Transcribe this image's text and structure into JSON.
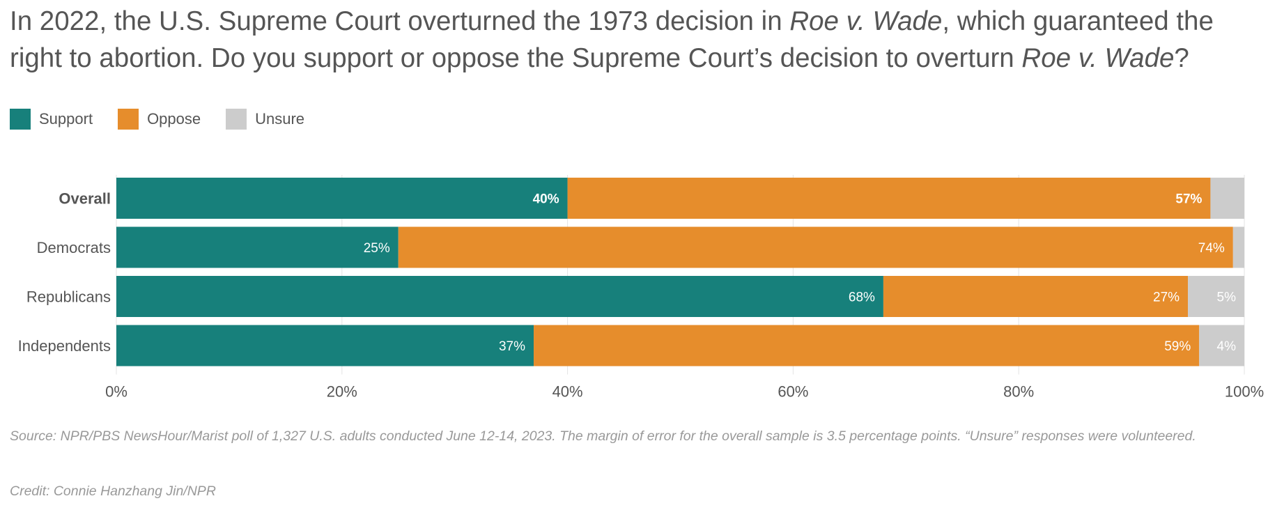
{
  "title": {
    "part1": "In 2022, the U.S. Supreme Court overturned the 1973 decision in ",
    "case1": "Roe v. Wade",
    "part2": ", which guaranteed the right to abortion. Do you support or oppose the Supreme Court’s decision to overturn ",
    "case2": "Roe v. Wade",
    "part3": "?"
  },
  "source": "Source: NPR/PBS NewsHour/Marist poll of 1,327 U.S. adults conducted June 12-14, 2023. The margin of error for the overall sample is 3.5 percentage points. “Unsure” responses were volunteered.",
  "credit": "Credit: Connie Hanzhang Jin/NPR",
  "colors": {
    "support": "#17807b",
    "oppose": "#e68d2c",
    "unsure": "#cccccc",
    "text": "#555555",
    "grid": "#e3e3e3"
  },
  "chart_data": {
    "type": "bar",
    "orientation": "horizontal",
    "stacked": true,
    "categories": [
      "Overall",
      "Democrats",
      "Republicans",
      "Independents"
    ],
    "bold_categories": [
      "Overall"
    ],
    "series": [
      {
        "name": "Support",
        "values": [
          40,
          25,
          68,
          37
        ],
        "labels": [
          "40%",
          "25%",
          "68%",
          "37%"
        ],
        "color": "#17807b"
      },
      {
        "name": "Oppose",
        "values": [
          57,
          74,
          27,
          59
        ],
        "labels": [
          "57%",
          "74%",
          "27%",
          "59%"
        ],
        "color": "#e68d2c"
      },
      {
        "name": "Unsure",
        "values": [
          3,
          1,
          5,
          4
        ],
        "labels": [
          "",
          "",
          "5%",
          "4%"
        ],
        "color": "#cccccc"
      }
    ],
    "xlim": [
      0,
      100
    ],
    "xticks": [
      0,
      20,
      40,
      60,
      80,
      100
    ],
    "xtick_labels": [
      "0%",
      "20%",
      "40%",
      "60%",
      "80%",
      "100%"
    ],
    "grid": true,
    "legend_position": "top-left"
  }
}
